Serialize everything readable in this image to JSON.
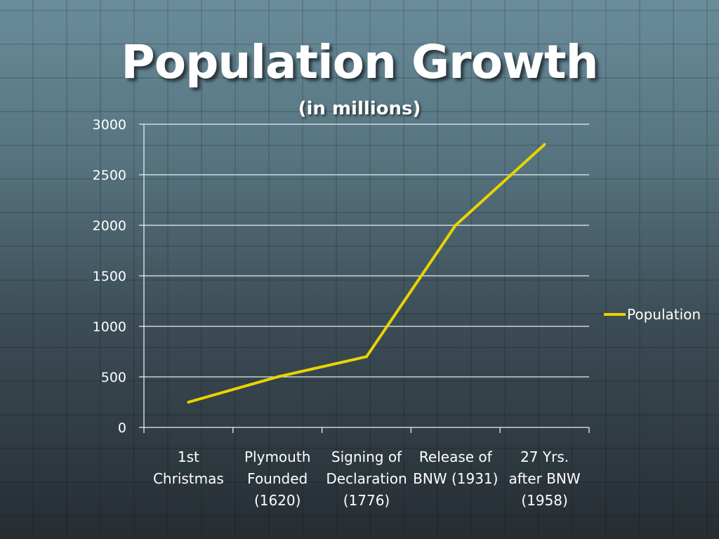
{
  "chart_data": {
    "type": "line",
    "title": "Population Growth",
    "subtitle": "(in millions)",
    "xlabel": "",
    "ylabel": "",
    "categories": [
      [
        "1st",
        "Christmas"
      ],
      [
        "Plymouth",
        "Founded",
        "(1620)"
      ],
      [
        "Signing of",
        "Declaration",
        "(1776)"
      ],
      [
        "Release of",
        "BNW (1931)"
      ],
      [
        "27 Yrs.",
        "after BNW",
        "(1958)"
      ]
    ],
    "series": [
      {
        "name": "Population",
        "values": [
          250,
          500,
          700,
          2000,
          2800
        ],
        "color": "#e8d400"
      }
    ],
    "ylim": [
      0,
      3000
    ],
    "yticks": [
      0,
      500,
      1000,
      1500,
      2000,
      2500,
      3000
    ],
    "grid": true,
    "legend": "right"
  }
}
